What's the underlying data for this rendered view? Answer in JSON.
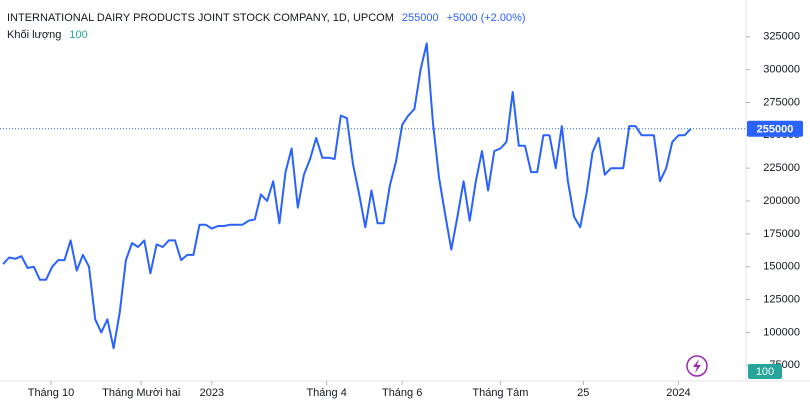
{
  "chart_data": {
    "type": "line",
    "title": "INTERNATIONAL DAIRY PRODUCTS JOINT STOCK COMPANY, 1D, UPCOM",
    "last_price": 255000,
    "change": "+5000 (+2.00%)",
    "volume_label": "Khối lượng",
    "volume": 100,
    "series": [
      {
        "color": "#2962ff",
        "values": [
          152000,
          157000,
          156000,
          158000,
          149000,
          150000,
          140000,
          140000,
          150000,
          155000,
          155000,
          170000,
          147000,
          159000,
          150000,
          110000,
          100000,
          110000,
          88000,
          115000,
          155000,
          168000,
          165000,
          170000,
          145000,
          167000,
          165000,
          170000,
          170000,
          155000,
          159000,
          159000,
          182000,
          182000,
          179000,
          181000,
          181000,
          182000,
          182000,
          182000,
          185000,
          186000,
          205000,
          200000,
          215000,
          183000,
          222000,
          240000,
          195000,
          220000,
          232000,
          248000,
          233000,
          233000,
          232000,
          265000,
          263000,
          228000,
          205000,
          180000,
          208000,
          183000,
          183000,
          212000,
          230000,
          258000,
          265000,
          270000,
          300000,
          320000,
          260000,
          218000,
          190000,
          163000,
          188000,
          215000,
          185000,
          215000,
          238000,
          208000,
          238000,
          240000,
          245000,
          283000,
          242000,
          242000,
          222000,
          222000,
          250000,
          250000,
          225000,
          257000,
          215000,
          188000,
          180000,
          205000,
          237000,
          248000,
          220000,
          225000,
          225000,
          225000,
          257000,
          257000,
          250000,
          250000,
          250000,
          215000,
          225000,
          245000,
          250000,
          250000,
          255000
        ]
      }
    ],
    "xlim": [
      -0.5,
      121
    ],
    "xticks": [
      {
        "value": 7.8,
        "label": "Tháng 10"
      },
      {
        "value": 22.5,
        "label": "Tháng Mười hai"
      },
      {
        "value": 34,
        "label": "2023"
      },
      {
        "value": 52.7,
        "label": "Tháng 4"
      },
      {
        "value": 65,
        "label": "Tháng 6"
      },
      {
        "value": 81,
        "label": "Tháng Tám"
      },
      {
        "value": 94.5,
        "label": "25"
      },
      {
        "value": 110,
        "label": "2024"
      }
    ],
    "ylim": [
      63000,
      353000
    ],
    "yticks": [
      75000,
      100000,
      125000,
      150000,
      175000,
      200000,
      225000,
      250000,
      275000,
      300000,
      325000
    ]
  }
}
